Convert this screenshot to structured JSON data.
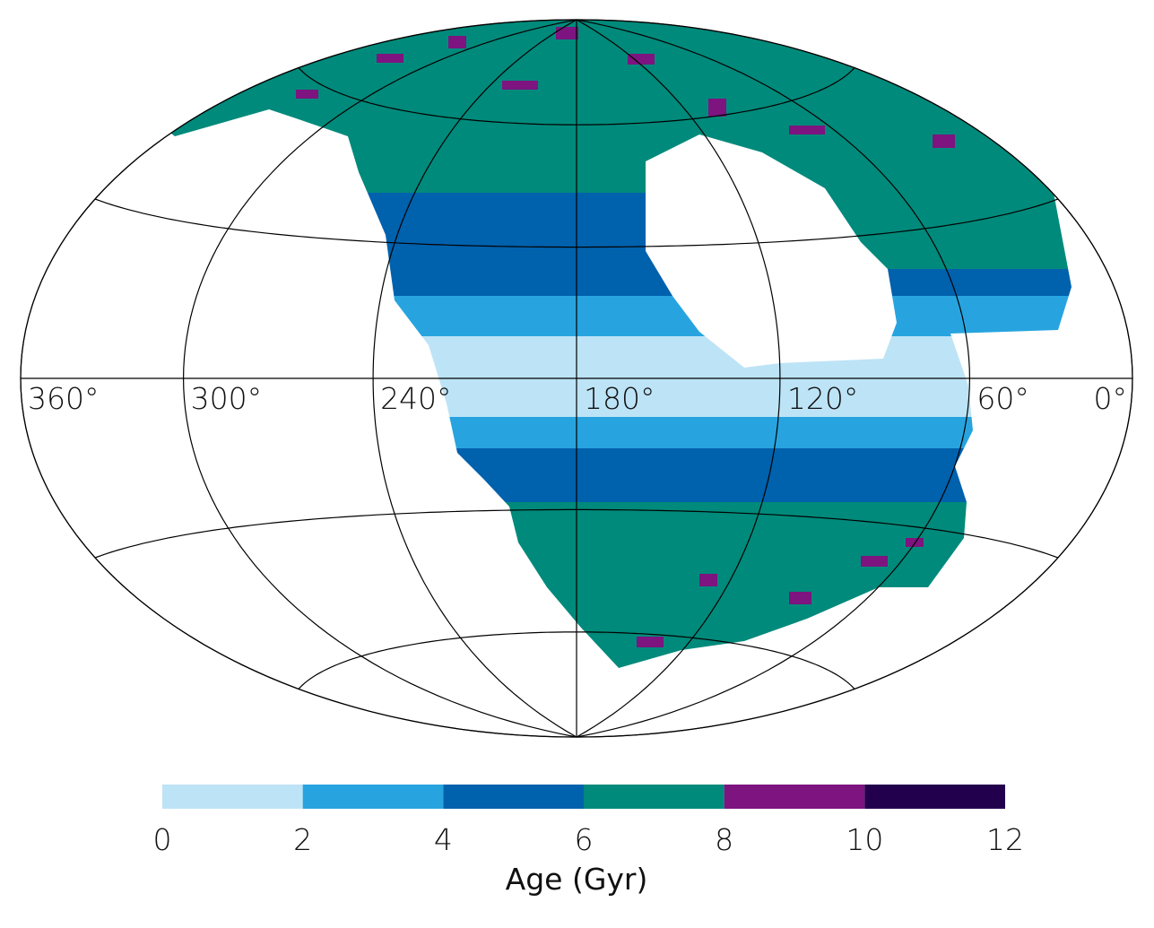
{
  "map": {
    "lon_ticks": [
      {
        "value": 360,
        "label": "360°"
      },
      {
        "value": 300,
        "label": "300°"
      },
      {
        "value": 240,
        "label": "240°"
      },
      {
        "value": 180,
        "label": "180°"
      },
      {
        "value": 120,
        "label": "120°"
      },
      {
        "value": 60,
        "label": "60°"
      },
      {
        "value": 0,
        "label": "0°"
      }
    ]
  },
  "colorbar": {
    "label": "Age (Gyr)",
    "lim": [
      0,
      12
    ],
    "ticks": [
      0,
      2,
      4,
      6,
      8,
      10,
      12
    ],
    "colors": [
      "#bde3f6",
      "#27a4df",
      "#0061ad",
      "#008a7b",
      "#7d1480",
      "#23004d"
    ]
  }
}
